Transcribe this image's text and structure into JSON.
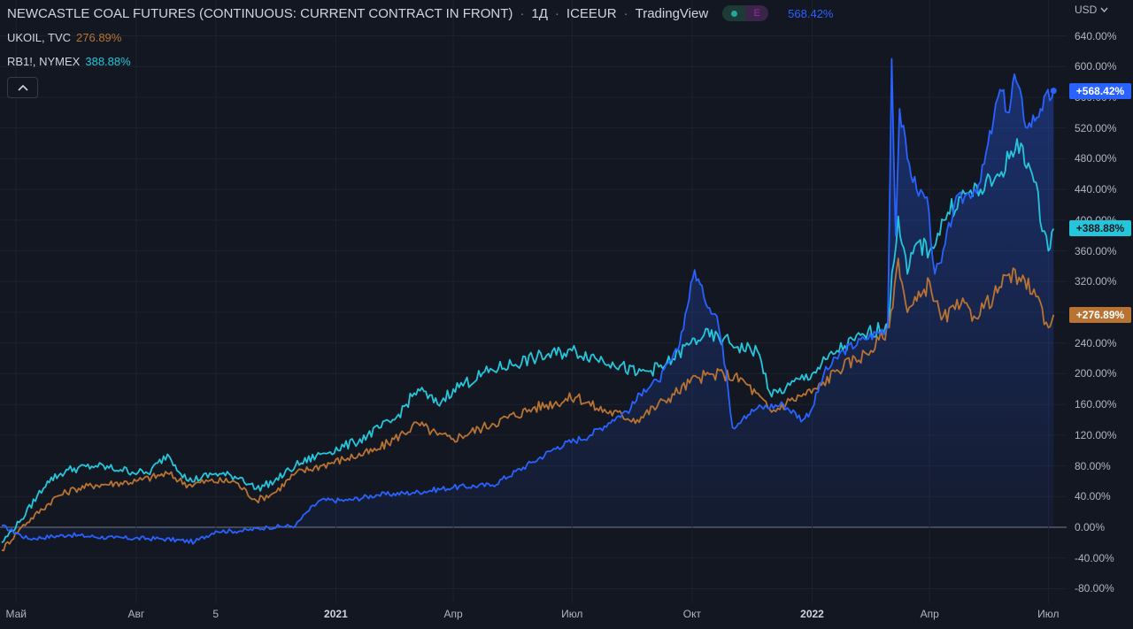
{
  "header": {
    "title": "NEWCASTLE COAL FUTURES (CONTINUOUS: CURRENT CONTRACT IN FRONT)",
    "interval": "1Д",
    "exchange": "ICEEUR",
    "source": "TradingView",
    "e_badge": "E",
    "main_change": "568.42%"
  },
  "legend": [
    {
      "symbol": "UKOIL, TVC",
      "value": "276.89%",
      "color": "#b87333"
    },
    {
      "symbol": "RB1!, NYMEX",
      "value": "388.88%",
      "color": "#26c6da"
    }
  ],
  "currency": "USD",
  "colors": {
    "coal": "#2962ff",
    "ukoil": "#b87333",
    "rb": "#26c6da",
    "background": "#131722",
    "grid": "#1e222d"
  },
  "chart_data": {
    "type": "line",
    "y_unit": "%",
    "ylim": [
      -80,
      640
    ],
    "yticks": [
      "640.00%",
      "600.00%",
      "560.00%",
      "520.00%",
      "480.00%",
      "440.00%",
      "400.00%",
      "360.00%",
      "320.00%",
      "280.00%",
      "240.00%",
      "200.00%",
      "160.00%",
      "120.00%",
      "80.00%",
      "40.00%",
      "0.00%",
      "-40.00%",
      "-80.00%"
    ],
    "xticks": [
      "Май",
      "Авг",
      "5",
      "2021",
      "Апр",
      "Июл",
      "Окт",
      "2022",
      "Апр",
      "Июл"
    ],
    "xlim": [
      "2020-04-20",
      "2022-07-15"
    ],
    "xtick_dates": [
      "2020-05-01",
      "2020-08-01",
      "2020-10-01",
      "2021-01-01",
      "2021-04-01",
      "2021-07-01",
      "2021-10-01",
      "2022-01-01",
      "2022-04-01",
      "2022-07-01"
    ],
    "grid": true,
    "legend": "top-left",
    "series": [
      {
        "name": "NEWCASTLE COAL FUTURES",
        "last": "+568.42%",
        "points": [
          [
            "2020-04-20",
            2
          ],
          [
            "2020-05-10",
            -15
          ],
          [
            "2020-06-10",
            -10
          ],
          [
            "2020-07-15",
            -14
          ],
          [
            "2020-08-20",
            -15
          ],
          [
            "2020-09-15",
            -19
          ],
          [
            "2020-10-01",
            -5
          ],
          [
            "2020-10-20",
            -5
          ],
          [
            "2020-11-10",
            0
          ],
          [
            "2020-12-01",
            2
          ],
          [
            "2020-12-10",
            20
          ],
          [
            "2020-12-20",
            35
          ],
          [
            "2021-01-10",
            35
          ],
          [
            "2021-02-01",
            42
          ],
          [
            "2021-03-01",
            45
          ],
          [
            "2021-04-01",
            52
          ],
          [
            "2021-05-01",
            55
          ],
          [
            "2021-06-01",
            85
          ],
          [
            "2021-06-20",
            105
          ],
          [
            "2021-07-15",
            120
          ],
          [
            "2021-08-01",
            140
          ],
          [
            "2021-08-15",
            155
          ],
          [
            "2021-08-25",
            180
          ],
          [
            "2021-09-05",
            190
          ],
          [
            "2021-09-20",
            230
          ],
          [
            "2021-10-03",
            335
          ],
          [
            "2021-10-10",
            300
          ],
          [
            "2021-10-20",
            275
          ],
          [
            "2021-10-27",
            205
          ],
          [
            "2021-11-01",
            130
          ],
          [
            "2021-11-10",
            145
          ],
          [
            "2021-11-20",
            155
          ],
          [
            "2021-12-10",
            160
          ],
          [
            "2021-12-25",
            140
          ],
          [
            "2022-01-01",
            155
          ],
          [
            "2022-01-10",
            200
          ],
          [
            "2022-01-25",
            230
          ],
          [
            "2022-02-10",
            245
          ],
          [
            "2022-02-28",
            260
          ],
          [
            "2022-03-03",
            610
          ],
          [
            "2022-03-06",
            380
          ],
          [
            "2022-03-09",
            545
          ],
          [
            "2022-03-15",
            480
          ],
          [
            "2022-03-22",
            440
          ],
          [
            "2022-03-30",
            430
          ],
          [
            "2022-04-05",
            330
          ],
          [
            "2022-04-10",
            345
          ],
          [
            "2022-04-20",
            420
          ],
          [
            "2022-05-01",
            435
          ],
          [
            "2022-05-10",
            450
          ],
          [
            "2022-05-20",
            530
          ],
          [
            "2022-05-25",
            570
          ],
          [
            "2022-06-01",
            540
          ],
          [
            "2022-06-05",
            590
          ],
          [
            "2022-06-15",
            520
          ],
          [
            "2022-06-25",
            545
          ],
          [
            "2022-07-05",
            568.42
          ]
        ]
      },
      {
        "name": "UKOIL, TVC",
        "last": "+276.89%",
        "points": [
          [
            "2020-04-20",
            -30
          ],
          [
            "2020-05-05",
            0
          ],
          [
            "2020-06-01",
            40
          ],
          [
            "2020-06-15",
            50
          ],
          [
            "2020-07-01",
            55
          ],
          [
            "2020-08-01",
            60
          ],
          [
            "2020-08-25",
            70
          ],
          [
            "2020-09-10",
            55
          ],
          [
            "2020-09-25",
            60
          ],
          [
            "2020-10-15",
            60
          ],
          [
            "2020-11-01",
            35
          ],
          [
            "2020-11-15",
            45
          ],
          [
            "2020-12-01",
            70
          ],
          [
            "2020-12-20",
            80
          ],
          [
            "2021-01-10",
            90
          ],
          [
            "2021-02-01",
            100
          ],
          [
            "2021-03-05",
            135
          ],
          [
            "2021-03-20",
            120
          ],
          [
            "2021-04-01",
            115
          ],
          [
            "2021-05-01",
            135
          ],
          [
            "2021-06-01",
            155
          ],
          [
            "2021-07-05",
            170
          ],
          [
            "2021-07-20",
            155
          ],
          [
            "2021-08-20",
            140
          ],
          [
            "2021-09-10",
            165
          ],
          [
            "2021-10-05",
            195
          ],
          [
            "2021-10-25",
            200
          ],
          [
            "2021-11-10",
            190
          ],
          [
            "2021-12-01",
            150
          ],
          [
            "2021-12-15",
            165
          ],
          [
            "2022-01-05",
            180
          ],
          [
            "2022-01-20",
            205
          ],
          [
            "2022-02-15",
            230
          ],
          [
            "2022-03-01",
            260
          ],
          [
            "2022-03-08",
            350
          ],
          [
            "2022-03-15",
            280
          ],
          [
            "2022-03-25",
            300
          ],
          [
            "2022-04-01",
            320
          ],
          [
            "2022-04-10",
            270
          ],
          [
            "2022-04-25",
            290
          ],
          [
            "2022-05-05",
            275
          ],
          [
            "2022-05-20",
            300
          ],
          [
            "2022-06-01",
            330
          ],
          [
            "2022-06-10",
            320
          ],
          [
            "2022-06-20",
            310
          ],
          [
            "2022-07-01",
            260
          ],
          [
            "2022-07-05",
            276.89
          ]
        ]
      },
      {
        "name": "RB1!, NYMEX",
        "last": "+388.88%",
        "points": [
          [
            "2020-04-20",
            -20
          ],
          [
            "2020-05-05",
            10
          ],
          [
            "2020-05-25",
            60
          ],
          [
            "2020-06-10",
            75
          ],
          [
            "2020-07-01",
            80
          ],
          [
            "2020-07-20",
            75
          ],
          [
            "2020-08-10",
            70
          ],
          [
            "2020-08-25",
            95
          ],
          [
            "2020-09-10",
            60
          ],
          [
            "2020-10-01",
            70
          ],
          [
            "2020-10-20",
            65
          ],
          [
            "2020-11-01",
            50
          ],
          [
            "2020-11-15",
            60
          ],
          [
            "2020-12-01",
            80
          ],
          [
            "2020-12-20",
            95
          ],
          [
            "2021-01-15",
            110
          ],
          [
            "2021-02-15",
            140
          ],
          [
            "2021-03-05",
            180
          ],
          [
            "2021-03-20",
            160
          ],
          [
            "2021-04-01",
            180
          ],
          [
            "2021-05-01",
            205
          ],
          [
            "2021-06-01",
            220
          ],
          [
            "2021-07-01",
            230
          ],
          [
            "2021-08-01",
            215
          ],
          [
            "2021-08-20",
            200
          ],
          [
            "2021-09-10",
            210
          ],
          [
            "2021-09-30",
            240
          ],
          [
            "2021-10-10",
            250
          ],
          [
            "2021-10-25",
            245
          ],
          [
            "2021-11-05",
            235
          ],
          [
            "2021-11-20",
            230
          ],
          [
            "2021-12-01",
            170
          ],
          [
            "2021-12-15",
            185
          ],
          [
            "2022-01-01",
            200
          ],
          [
            "2022-01-20",
            230
          ],
          [
            "2022-02-10",
            250
          ],
          [
            "2022-02-28",
            265
          ],
          [
            "2022-03-08",
            405
          ],
          [
            "2022-03-15",
            330
          ],
          [
            "2022-03-22",
            370
          ],
          [
            "2022-04-01",
            360
          ],
          [
            "2022-04-15",
            410
          ],
          [
            "2022-04-25",
            430
          ],
          [
            "2022-05-10",
            440
          ],
          [
            "2022-05-20",
            450
          ],
          [
            "2022-06-01",
            480
          ],
          [
            "2022-06-10",
            500
          ],
          [
            "2022-06-20",
            450
          ],
          [
            "2022-07-01",
            360
          ],
          [
            "2022-07-05",
            388.88
          ]
        ]
      }
    ]
  }
}
